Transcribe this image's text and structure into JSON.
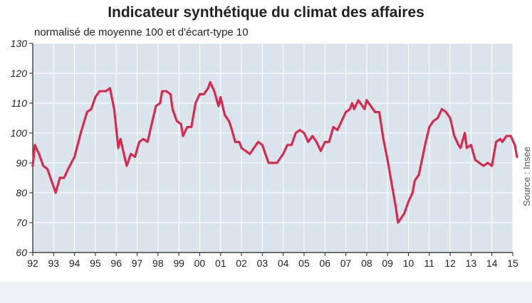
{
  "header": {
    "title": "Indicateur synthétique du climat des affaires",
    "subtitle": "normalisé de moyenne 100 et d'écart-type 10"
  },
  "source": "Source : Insee",
  "colors": {
    "plot_background": "#d9e4ed",
    "grid": "#ffffff",
    "line": "#d42b4e",
    "axis": "#222222"
  },
  "chart_data": {
    "type": "line",
    "title": "Indicateur synthétique du climat des affaires",
    "subtitle": "normalisé de moyenne 100 et d'écart-type 10",
    "xlabel": "",
    "ylabel": "",
    "ylim": [
      60,
      130
    ],
    "xlim": [
      1992,
      2015
    ],
    "yticks": [
      60,
      70,
      80,
      90,
      100,
      110,
      120,
      130
    ],
    "xtick_labels": [
      "92",
      "93",
      "94",
      "95",
      "96",
      "97",
      "98",
      "99",
      "00",
      "01",
      "02",
      "03",
      "04",
      "05",
      "06",
      "07",
      "08",
      "09",
      "10",
      "11",
      "12",
      "13",
      "14",
      "15"
    ],
    "grid": true,
    "legend": "none",
    "series": [
      {
        "values": [
          [
            1992.0,
            89
          ],
          [
            1992.1,
            96
          ],
          [
            1992.3,
            93
          ],
          [
            1992.5,
            89
          ],
          [
            1992.7,
            88
          ],
          [
            1993.0,
            82
          ],
          [
            1993.1,
            80
          ],
          [
            1993.3,
            85
          ],
          [
            1993.5,
            85
          ],
          [
            1993.7,
            88
          ],
          [
            1994.0,
            92
          ],
          [
            1994.3,
            100
          ],
          [
            1994.6,
            107
          ],
          [
            1994.8,
            108
          ],
          [
            1995.0,
            112
          ],
          [
            1995.2,
            114
          ],
          [
            1995.5,
            114
          ],
          [
            1995.7,
            115
          ],
          [
            1995.9,
            108
          ],
          [
            1996.1,
            95
          ],
          [
            1996.2,
            98
          ],
          [
            1996.4,
            92
          ],
          [
            1996.5,
            89
          ],
          [
            1996.7,
            93
          ],
          [
            1996.9,
            92
          ],
          [
            1997.1,
            97
          ],
          [
            1997.3,
            98
          ],
          [
            1997.5,
            97
          ],
          [
            1997.7,
            103
          ],
          [
            1997.9,
            109
          ],
          [
            1998.1,
            110
          ],
          [
            1998.2,
            114
          ],
          [
            1998.4,
            114
          ],
          [
            1998.6,
            113
          ],
          [
            1998.7,
            108
          ],
          [
            1998.9,
            104
          ],
          [
            1999.1,
            103
          ],
          [
            1999.2,
            99
          ],
          [
            1999.4,
            102
          ],
          [
            1999.6,
            102
          ],
          [
            1999.8,
            110
          ],
          [
            2000.0,
            113
          ],
          [
            2000.2,
            113
          ],
          [
            2000.4,
            115
          ],
          [
            2000.5,
            117
          ],
          [
            2000.7,
            114
          ],
          [
            2000.9,
            109
          ],
          [
            2001.0,
            112
          ],
          [
            2001.2,
            106
          ],
          [
            2001.4,
            104
          ],
          [
            2001.5,
            102
          ],
          [
            2001.7,
            97
          ],
          [
            2001.9,
            97
          ],
          [
            2002.0,
            95
          ],
          [
            2002.2,
            94
          ],
          [
            2002.4,
            93
          ],
          [
            2002.6,
            95
          ],
          [
            2002.8,
            97
          ],
          [
            2003.0,
            96
          ],
          [
            2003.3,
            90
          ],
          [
            2003.5,
            90
          ],
          [
            2003.7,
            90
          ],
          [
            2004.0,
            93
          ],
          [
            2004.2,
            96
          ],
          [
            2004.4,
            96
          ],
          [
            2004.6,
            100
          ],
          [
            2004.8,
            101
          ],
          [
            2005.0,
            100
          ],
          [
            2005.2,
            97
          ],
          [
            2005.4,
            99
          ],
          [
            2005.6,
            97
          ],
          [
            2005.8,
            94
          ],
          [
            2006.0,
            97
          ],
          [
            2006.2,
            97
          ],
          [
            2006.4,
            102
          ],
          [
            2006.6,
            101
          ],
          [
            2006.8,
            104
          ],
          [
            2007.0,
            107
          ],
          [
            2007.2,
            108
          ],
          [
            2007.3,
            110
          ],
          [
            2007.4,
            108
          ],
          [
            2007.6,
            111
          ],
          [
            2007.8,
            109
          ],
          [
            2007.9,
            108
          ],
          [
            2008.0,
            111
          ],
          [
            2008.2,
            109
          ],
          [
            2008.4,
            107
          ],
          [
            2008.6,
            107
          ],
          [
            2008.8,
            98
          ],
          [
            2009.0,
            91
          ],
          [
            2009.2,
            83
          ],
          [
            2009.4,
            75
          ],
          [
            2009.5,
            70
          ],
          [
            2009.8,
            73
          ],
          [
            2010.0,
            77
          ],
          [
            2010.2,
            80
          ],
          [
            2010.3,
            84
          ],
          [
            2010.5,
            86
          ],
          [
            2010.8,
            96
          ],
          [
            2011.0,
            102
          ],
          [
            2011.2,
            104
          ],
          [
            2011.4,
            105
          ],
          [
            2011.6,
            108
          ],
          [
            2011.8,
            107
          ],
          [
            2012.0,
            105
          ],
          [
            2012.2,
            99
          ],
          [
            2012.4,
            96
          ],
          [
            2012.5,
            95
          ],
          [
            2012.7,
            100
          ],
          [
            2012.8,
            95
          ],
          [
            2013.0,
            96
          ],
          [
            2013.2,
            91
          ],
          [
            2013.4,
            90
          ],
          [
            2013.6,
            89
          ],
          [
            2013.8,
            90
          ],
          [
            2014.0,
            89
          ],
          [
            2014.2,
            97
          ],
          [
            2014.4,
            98
          ],
          [
            2014.5,
            97
          ],
          [
            2014.7,
            99
          ],
          [
            2014.9,
            99
          ],
          [
            2015.1,
            96
          ],
          [
            2015.2,
            92
          ]
        ]
      }
    ]
  }
}
